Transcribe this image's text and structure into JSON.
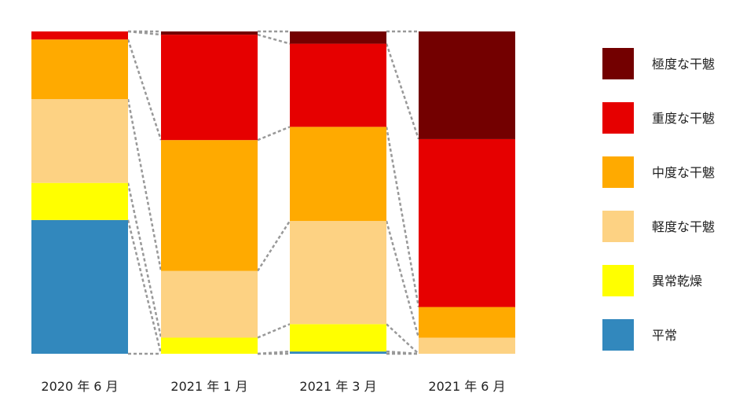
{
  "chart_data": {
    "type": "bar",
    "stacked": true,
    "normalized": true,
    "categories": [
      "2020 年 6 月",
      "2021 年 1 月",
      "2021 年 3 月",
      "2021 年 6 月"
    ],
    "series": [
      {
        "name": "平常",
        "color": "#3288BD",
        "values": [
          41.5,
          0,
          0.7,
          0
        ]
      },
      {
        "name": "異常乾燥",
        "color": "#FFFF00",
        "values": [
          11.5,
          5.0,
          8.5,
          0
        ]
      },
      {
        "name": "軽度な干魃",
        "color": "#FDD283",
        "values": [
          26.0,
          20.7,
          32.0,
          5.0
        ]
      },
      {
        "name": "中度な干魃",
        "color": "#FFAA00",
        "values": [
          18.5,
          40.6,
          29.2,
          9.5
        ]
      },
      {
        "name": "重度な干魃",
        "color": "#E60000",
        "values": [
          2.5,
          32.7,
          25.8,
          52.1
        ]
      },
      {
        "name": "極度な干魃",
        "color": "#730000",
        "values": [
          0,
          1.0,
          3.8,
          33.4
        ]
      }
    ],
    "ylim": [
      0,
      100
    ],
    "grid": false,
    "connector_lines": "dashed",
    "legend_position": "right"
  }
}
